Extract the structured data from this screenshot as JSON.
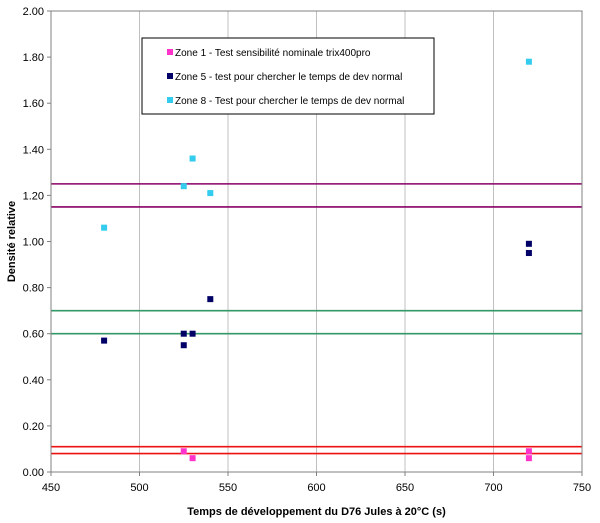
{
  "chart_data": {
    "type": "scatter",
    "xlabel": "Temps de développement du D76 Jules à 20°C (s)",
    "ylabel": "Densité relative",
    "xlim": [
      450,
      750
    ],
    "ylim": [
      0,
      2
    ],
    "x_ticks": [
      "450",
      "500",
      "550",
      "600",
      "650",
      "700",
      "750"
    ],
    "y_ticks": [
      "0.00",
      "0.20",
      "0.40",
      "0.60",
      "0.80",
      "1.00",
      "1.20",
      "1.40",
      "1.60",
      "1.80",
      "2.00"
    ],
    "grid": "vertical",
    "legend_position": "top-center",
    "series": [
      {
        "name": "Zone 1 - Test sensibilité nominale trix400pro",
        "color": "#ff33cc",
        "points": [
          [
            525,
            0.09
          ],
          [
            530,
            0.06
          ],
          [
            720,
            0.09
          ],
          [
            720,
            0.06
          ]
        ]
      },
      {
        "name": "Zone 5 - test pour chercher le temps de dev normal",
        "color": "#000066",
        "points": [
          [
            480,
            0.57
          ],
          [
            525,
            0.6
          ],
          [
            525,
            0.55
          ],
          [
            530,
            0.6
          ],
          [
            540,
            0.75
          ],
          [
            720,
            0.99
          ],
          [
            720,
            0.95
          ]
        ]
      },
      {
        "name": "Zone 8 - Test pour chercher le temps de dev normal",
        "color": "#33ccee",
        "points": [
          [
            480,
            1.06
          ],
          [
            525,
            1.24
          ],
          [
            530,
            1.36
          ],
          [
            540,
            1.21
          ],
          [
            720,
            1.78
          ]
        ]
      }
    ],
    "reference_lines": [
      {
        "y": 0.11,
        "color": "#ee1111"
      },
      {
        "y": 0.08,
        "color": "#ee1111"
      },
      {
        "y": 0.7,
        "color": "#339966"
      },
      {
        "y": 0.6,
        "color": "#339966"
      },
      {
        "y": 1.25,
        "color": "#880066"
      },
      {
        "y": 1.15,
        "color": "#880066"
      }
    ]
  }
}
